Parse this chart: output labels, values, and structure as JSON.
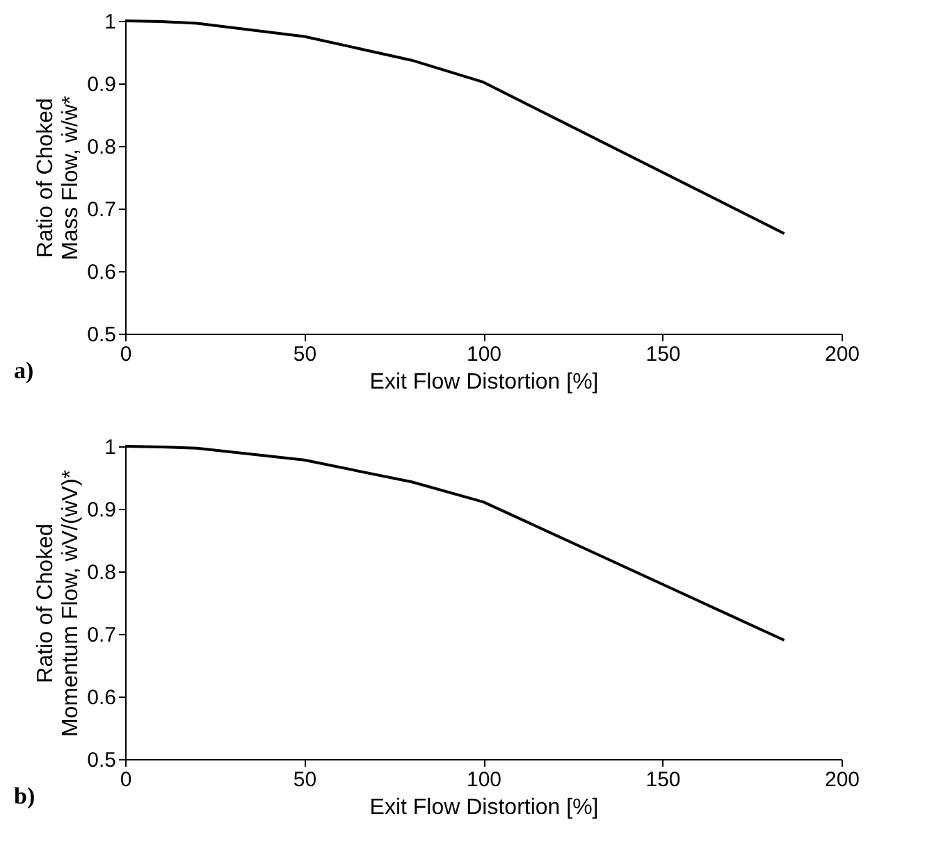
{
  "chart_data": [
    {
      "type": "line",
      "xlabel": "Exit Flow Distortion [%]",
      "ylabel": "Ratio of Choked\nMass Flow, ẇ/ẇ*",
      "x": [
        0,
        10,
        20,
        50,
        80,
        100,
        184
      ],
      "series": [
        {
          "color": "#000000",
          "values": [
            1,
            0.999,
            0.996,
            0.975,
            0.937,
            0.902,
            0.66
          ]
        }
      ],
      "xlim": [
        0,
        200
      ],
      "xticks": [
        0,
        50,
        100,
        150,
        200
      ],
      "ylim": [
        0.5,
        1
      ],
      "yticks": [
        0.5,
        0.6,
        0.7,
        0.8,
        0.9,
        1
      ],
      "grid": false,
      "annotations": [
        "a)"
      ]
    },
    {
      "type": "line",
      "xlabel": "Exit Flow Distortion [%]",
      "ylabel": "Ratio of Choked\nMomentum Flow, ẇV/(ẇV)*",
      "x": [
        0,
        10,
        20,
        50,
        80,
        100,
        184
      ],
      "series": [
        {
          "color": "#000000",
          "values": [
            1,
            0.999,
            0.997,
            0.978,
            0.943,
            0.911,
            0.69
          ]
        }
      ],
      "xlim": [
        0,
        200
      ],
      "xticks": [
        0,
        50,
        100,
        150,
        200
      ],
      "ylim": [
        0.5,
        1
      ],
      "yticks": [
        0.5,
        0.6,
        0.7,
        0.8,
        0.9,
        1
      ],
      "grid": false,
      "annotations": [
        "b)"
      ]
    }
  ]
}
